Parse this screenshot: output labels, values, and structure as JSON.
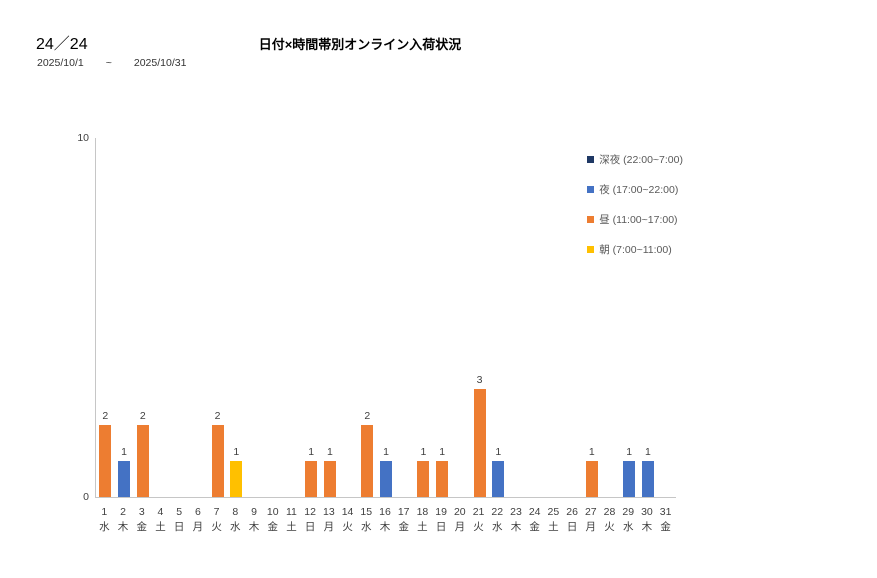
{
  "header": {
    "count_label": "24／24",
    "chart_title": "日付×時間帯別オンライン入荷状況",
    "date_from": "2025/10/1",
    "date_separator": "~",
    "date_to": "2025/10/31"
  },
  "colors": {
    "late_night": "#1f3864",
    "night": "#4472c4",
    "daytime": "#ed7d31",
    "morning": "#ffc000",
    "axis": "#c6c6c6",
    "text": "#404040"
  },
  "chart_data": {
    "type": "bar",
    "title": "日付×時間帯別オンライン入荷状況",
    "ylim": [
      0,
      10
    ],
    "y_ticks": [
      "10",
      "0"
    ],
    "grid": false,
    "legend_position": "top-right",
    "legend": [
      {
        "label": "深夜 (22:00~7:00)",
        "color": "#1f3864"
      },
      {
        "label": "夜 (17:00~22:00)",
        "color": "#4472c4"
      },
      {
        "label": "昼 (11:00~17:00)",
        "color": "#ed7d31"
      },
      {
        "label": "朝 (7:00~11:00)",
        "color": "#ffc000"
      }
    ],
    "categories": [
      {
        "day": "1",
        "weekday": "水"
      },
      {
        "day": "2",
        "weekday": "木"
      },
      {
        "day": "3",
        "weekday": "金"
      },
      {
        "day": "4",
        "weekday": "土"
      },
      {
        "day": "5",
        "weekday": "日"
      },
      {
        "day": "6",
        "weekday": "月"
      },
      {
        "day": "7",
        "weekday": "火"
      },
      {
        "day": "8",
        "weekday": "水"
      },
      {
        "day": "9",
        "weekday": "木"
      },
      {
        "day": "10",
        "weekday": "金"
      },
      {
        "day": "11",
        "weekday": "土"
      },
      {
        "day": "12",
        "weekday": "日"
      },
      {
        "day": "13",
        "weekday": "月"
      },
      {
        "day": "14",
        "weekday": "火"
      },
      {
        "day": "15",
        "weekday": "水"
      },
      {
        "day": "16",
        "weekday": "木"
      },
      {
        "day": "17",
        "weekday": "金"
      },
      {
        "day": "18",
        "weekday": "土"
      },
      {
        "day": "19",
        "weekday": "日"
      },
      {
        "day": "20",
        "weekday": "月"
      },
      {
        "day": "21",
        "weekday": "火"
      },
      {
        "day": "22",
        "weekday": "水"
      },
      {
        "day": "23",
        "weekday": "木"
      },
      {
        "day": "24",
        "weekday": "金"
      },
      {
        "day": "25",
        "weekday": "土"
      },
      {
        "day": "26",
        "weekday": "日"
      },
      {
        "day": "27",
        "weekday": "月"
      },
      {
        "day": "28",
        "weekday": "火"
      },
      {
        "day": "29",
        "weekday": "水"
      },
      {
        "day": "30",
        "weekday": "木"
      },
      {
        "day": "31",
        "weekday": "金"
      }
    ],
    "series": [
      {
        "name": "深夜 (22:00~7:00)",
        "color": "#1f3864",
        "values": [
          0,
          0,
          0,
          0,
          0,
          0,
          0,
          0,
          0,
          0,
          0,
          0,
          0,
          0,
          0,
          0,
          0,
          0,
          0,
          0,
          0,
          0,
          0,
          0,
          0,
          0,
          0,
          0,
          0,
          0,
          0
        ]
      },
      {
        "name": "夜 (17:00~22:00)",
        "color": "#4472c4",
        "values": [
          0,
          1,
          0,
          0,
          0,
          0,
          0,
          0,
          0,
          0,
          0,
          0,
          0,
          0,
          0,
          1,
          0,
          0,
          0,
          0,
          0,
          1,
          0,
          0,
          0,
          0,
          0,
          0,
          1,
          1,
          0
        ]
      },
      {
        "name": "昼 (11:00~17:00)",
        "color": "#ed7d31",
        "values": [
          2,
          0,
          2,
          0,
          0,
          0,
          2,
          0,
          0,
          0,
          0,
          1,
          1,
          0,
          2,
          0,
          0,
          1,
          1,
          0,
          3,
          0,
          0,
          0,
          0,
          0,
          1,
          0,
          0,
          0,
          0
        ]
      },
      {
        "name": "朝 (7:00~11:00)",
        "color": "#ffc000",
        "values": [
          0,
          0,
          0,
          0,
          0,
          0,
          0,
          1,
          0,
          0,
          0,
          0,
          0,
          0,
          0,
          0,
          0,
          0,
          0,
          0,
          0,
          0,
          0,
          0,
          0,
          0,
          0,
          0,
          0,
          0,
          0
        ]
      }
    ]
  }
}
